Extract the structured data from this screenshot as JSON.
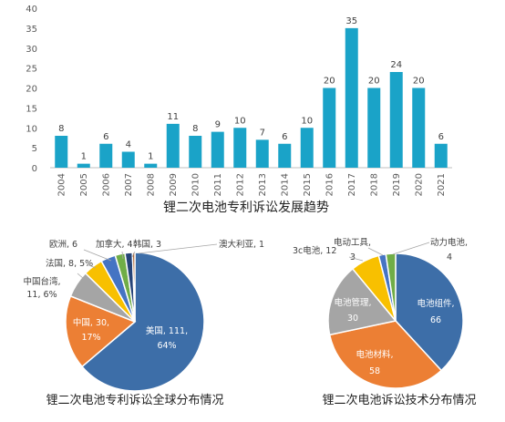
{
  "chart_data": [
    {
      "type": "bar",
      "title": "锂二次电池专利诉讼发展趋势",
      "categories": [
        "2004",
        "2005",
        "2006",
        "2007",
        "2008",
        "2009",
        "2010",
        "2011",
        "2012",
        "2013",
        "2014",
        "2015",
        "2016",
        "2017",
        "2018",
        "2019",
        "2020",
        "2021"
      ],
      "values": [
        8,
        1,
        6,
        4,
        1,
        11,
        8,
        9,
        10,
        7,
        6,
        10,
        20,
        35,
        20,
        24,
        20,
        6
      ],
      "ylim": [
        0,
        40
      ],
      "yticks": [
        0,
        5,
        10,
        15,
        20,
        25,
        30,
        35,
        40
      ],
      "grid": false,
      "legend": "none",
      "color": "#1aa3c8"
    },
    {
      "type": "pie",
      "title": "锂二次电池专利诉讼全球分布情况",
      "slices": [
        {
          "name": "美国",
          "value": 111,
          "label": "美国, 111,",
          "pct": "64%",
          "color": "#3d6ea8"
        },
        {
          "name": "中国",
          "value": 30,
          "label": "中国, 30,",
          "pct": "17%",
          "color": "#ec7f34"
        },
        {
          "name": "中国台湾",
          "value": 11,
          "label": "中国台湾,",
          "pct": "11, 6%",
          "color": "#a5a5a5"
        },
        {
          "name": "法国",
          "value": 8,
          "label": "法国, 8, 5%",
          "color": "#f8c000"
        },
        {
          "name": "欧洲",
          "value": 6,
          "label": "欧洲, 6",
          "color": "#4574c3"
        },
        {
          "name": "加拿大",
          "value": 4,
          "label": "加拿大, 4",
          "color": "#70ad47"
        },
        {
          "name": "韩国",
          "value": 3,
          "label": "韩国, 3",
          "color": "#264478"
        },
        {
          "name": "澳大利亚",
          "value": 1,
          "label": "澳大利亚, 1",
          "color": "#9e480e"
        }
      ]
    },
    {
      "type": "pie",
      "title": "锂二次电池诉讼技术分布情况",
      "slices": [
        {
          "name": "电池组件",
          "value": 66,
          "label": "电池组件,",
          "value_label": "66",
          "color": "#3d6ea8"
        },
        {
          "name": "电池材料",
          "value": 58,
          "label": "电池材料,",
          "value_label": "58",
          "color": "#ec7f34"
        },
        {
          "name": "电池管理",
          "value": 30,
          "label": "电池管理,",
          "value_label": "30",
          "color": "#a5a5a5"
        },
        {
          "name": "3c电池",
          "value": 12,
          "label": "3c电池, 12",
          "color": "#f8c000"
        },
        {
          "name": "电动工具",
          "value": 3,
          "label": "电动工具,",
          "value_label": "3",
          "color": "#4574c3"
        },
        {
          "name": "动力电池",
          "value": 4,
          "label": "动力电池,",
          "value_label": "4",
          "color": "#70ad47"
        }
      ]
    }
  ]
}
